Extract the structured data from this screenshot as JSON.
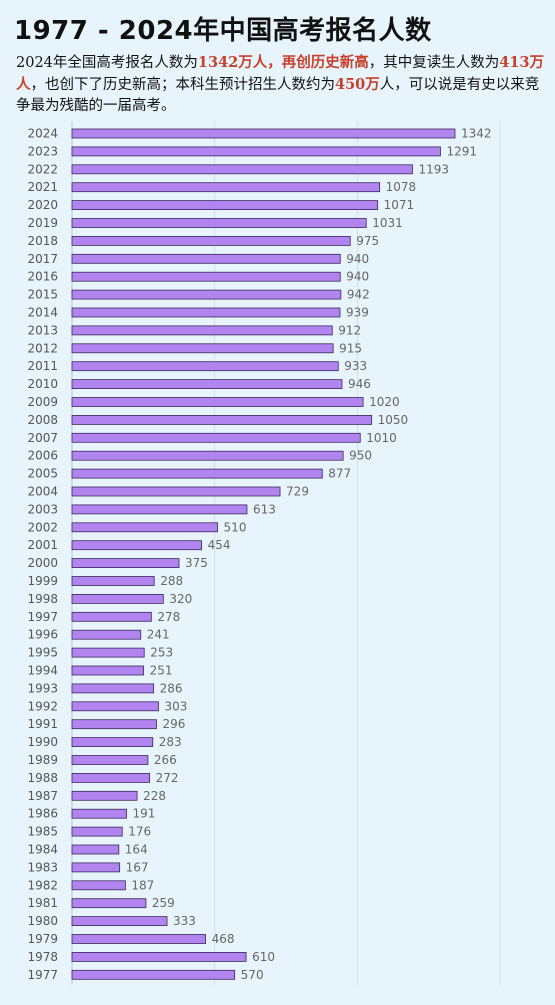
{
  "title": "1977 - 2024年中国高考报名人数",
  "description": {
    "p1": "2024年全国高考报名人数为",
    "h1": "1342万人，再创历史新高",
    "p2": "，其中复读生人数为",
    "h2": "413万人",
    "p3": "，也创下了历史新高；本科生预计招生人数约为",
    "h3": "450万",
    "p4": "人，可以说是有史以来竞争最为残酷的一届高考。"
  },
  "colors": {
    "bar_fill": "#b184f0",
    "bar_stroke": "#3a2a5a",
    "highlight": "#c8402a",
    "background": "#e8f4fc"
  },
  "chart_data": {
    "type": "bar",
    "orientation": "horizontal",
    "categories": [
      "2024",
      "2023",
      "2022",
      "2021",
      "2020",
      "2019",
      "2018",
      "2017",
      "2016",
      "2015",
      "2014",
      "2013",
      "2012",
      "2011",
      "2010",
      "2009",
      "2008",
      "2007",
      "2006",
      "2005",
      "2004",
      "2003",
      "2002",
      "2001",
      "2000",
      "1999",
      "1998",
      "1997",
      "1996",
      "1995",
      "1994",
      "1993",
      "1992",
      "1991",
      "1990",
      "1989",
      "1988",
      "1987",
      "1986",
      "1985",
      "1984",
      "1983",
      "1982",
      "1981",
      "1980",
      "1979",
      "1978",
      "1977"
    ],
    "values": [
      1342,
      1291,
      1193,
      1078,
      1071,
      1031,
      975,
      940,
      940,
      942,
      939,
      912,
      915,
      933,
      946,
      1020,
      1050,
      1010,
      950,
      877,
      729,
      613,
      510,
      454,
      375,
      288,
      320,
      278,
      241,
      253,
      251,
      286,
      303,
      296,
      283,
      266,
      272,
      228,
      191,
      176,
      164,
      167,
      187,
      259,
      333,
      468,
      610,
      570
    ],
    "data_labels": true,
    "grid": true,
    "xlim": [
      0,
      1500
    ]
  }
}
